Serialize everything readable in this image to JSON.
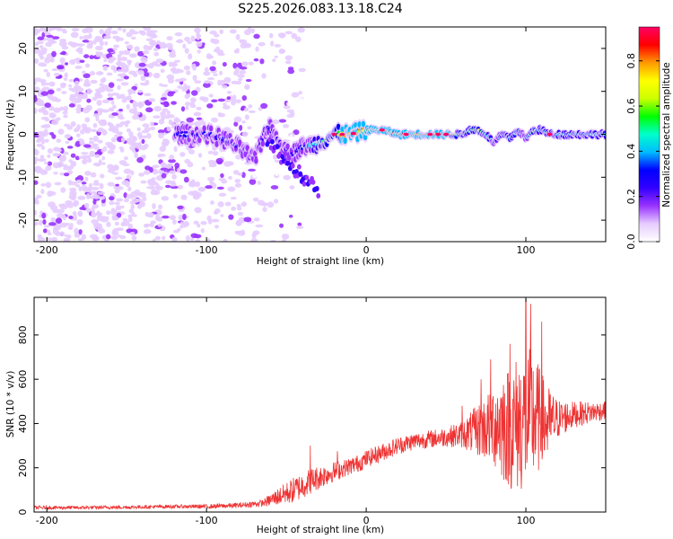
{
  "title": "S225.2026.083.13.18.C24",
  "colors": {
    "snr_line": "#ee3333",
    "background": "#ffffff",
    "axis": "#000000"
  },
  "chart_data": [
    {
      "type": "heatmap",
      "xlabel": "Height of straight line (km)",
      "ylabel": "Frequency (Hz)",
      "xlim": [
        -208,
        150
      ],
      "ylim": [
        -25,
        25
      ],
      "xticks": [
        -200,
        -100,
        0,
        100
      ],
      "xtick_labels": [
        "-200",
        "-100",
        "0",
        "100"
      ],
      "yticks": [
        -20,
        -10,
        0,
        10,
        20
      ],
      "ytick_labels": [
        "-20",
        "-10",
        "0",
        "10",
        "20"
      ],
      "colorbar": {
        "label": "Normalized spectral amplitude",
        "range": [
          0,
          0.95
        ],
        "ticks": [
          0.0,
          0.2,
          0.4,
          0.6,
          0.8
        ],
        "tick_labels": [
          "0.0",
          "0.2",
          "0.4",
          "0.6",
          "0.8"
        ],
        "colormap": [
          "#ffffff",
          "#e6ccff",
          "#9933ff",
          "#3300ff",
          "#0000ff",
          "#00bbff",
          "#00ffcc",
          "#00ff00",
          "#ccff00",
          "#ffff00",
          "#ff9900",
          "#ff0000",
          "#ff0066"
        ]
      },
      "signal_track": {
        "heights": [
          -115,
          -100,
          -90,
          -80,
          -70,
          -62,
          -55,
          -48,
          -40,
          -30,
          -20,
          -10,
          0,
          10,
          20,
          30,
          40,
          50,
          60,
          65,
          70,
          75,
          80,
          85,
          90,
          95,
          100,
          105,
          110,
          115,
          120,
          130,
          140,
          150
        ],
        "frequency": [
          0,
          0,
          -1,
          -3,
          -6,
          2,
          -1,
          -5,
          -3,
          -2,
          0,
          0,
          1,
          1,
          0,
          0,
          0,
          0,
          0,
          1,
          1,
          0,
          -2,
          0,
          -1,
          1,
          -1,
          1,
          1,
          0,
          0,
          0,
          0,
          0
        ],
        "amplitude": [
          0.3,
          0.35,
          0.3,
          0.25,
          0.2,
          0.3,
          0.25,
          0.2,
          0.35,
          0.5,
          0.75,
          0.85,
          0.8,
          0.85,
          0.9,
          0.95,
          0.95,
          0.9,
          0.5,
          0.6,
          0.7,
          0.5,
          0.4,
          0.45,
          0.5,
          0.45,
          0.4,
          0.55,
          0.5,
          0.5,
          0.5,
          0.5,
          0.5,
          0.5
        ]
      },
      "noise_region": [
        -208,
        -70
      ]
    },
    {
      "type": "line",
      "xlabel": "Height of straight line (km)",
      "ylabel": "SNR (10 * v/v)",
      "xlim": [
        -208,
        150
      ],
      "ylim": [
        0,
        970
      ],
      "xticks": [
        -200,
        -100,
        0,
        100
      ],
      "xtick_labels": [
        "-200",
        "-100",
        "0",
        "100"
      ],
      "yticks": [
        0,
        200,
        400,
        600,
        800
      ],
      "ytick_labels": [
        "0",
        "200",
        "400",
        "600",
        "800"
      ],
      "series": [
        {
          "name": "SNR",
          "x": [
            -208,
            -180,
            -150,
            -120,
            -100,
            -80,
            -65,
            -55,
            -45,
            -35,
            -25,
            -15,
            -5,
            0,
            10,
            20,
            30,
            40,
            50,
            60,
            65,
            70,
            75,
            80,
            85,
            90,
            95,
            100,
            105,
            110,
            115,
            120,
            130,
            140,
            150
          ],
          "y": [
            20,
            20,
            22,
            25,
            25,
            30,
            40,
            70,
            100,
            140,
            170,
            195,
            220,
            240,
            270,
            300,
            320,
            330,
            340,
            350,
            360,
            370,
            380,
            400,
            400,
            380,
            400,
            420,
            430,
            410,
            400,
            420,
            440,
            450,
            460
          ],
          "noise_amplitude": [
            8,
            8,
            8,
            8,
            10,
            12,
            15,
            40,
            60,
            60,
            50,
            40,
            40,
            40,
            40,
            40,
            40,
            40,
            45,
            60,
            90,
            120,
            150,
            200,
            260,
            280,
            320,
            330,
            300,
            220,
            160,
            90,
            60,
            50,
            40
          ],
          "spikes": [
            {
              "x": -35,
              "y": 300
            },
            {
              "x": -18,
              "y": 275
            },
            {
              "x": 60,
              "y": 480
            },
            {
              "x": 72,
              "y": 600
            },
            {
              "x": 78,
              "y": 690
            },
            {
              "x": 90,
              "y": 760
            },
            {
              "x": 100,
              "y": 960
            },
            {
              "x": 103,
              "y": 940
            },
            {
              "x": 110,
              "y": 860
            }
          ]
        }
      ]
    }
  ]
}
